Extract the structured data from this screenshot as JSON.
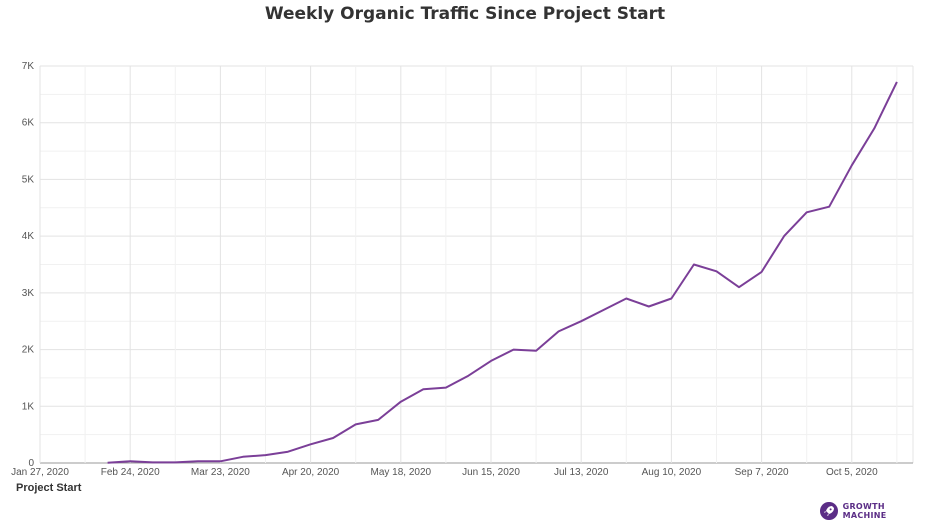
{
  "page": {
    "title": "Weekly Organic Traffic Since Project Start"
  },
  "brand": {
    "name": "GROWTH MACHINE",
    "icon": "rocket-icon",
    "color": "#5b2d86"
  },
  "chart_data": {
    "type": "line",
    "title": "Weekly Organic Traffic Since Project Start",
    "xlabel": "Project Start",
    "ylabel": "",
    "line_color": "#7b3f98",
    "grid": true,
    "legend": "none",
    "xlim": [
      "2020-01-27",
      "2020-10-24"
    ],
    "ylim": [
      0,
      7000
    ],
    "y_ticks": [
      0,
      1000,
      2000,
      3000,
      4000,
      5000,
      6000,
      7000
    ],
    "y_tick_labels": [
      "0",
      "1K",
      "2K",
      "3K",
      "4K",
      "5K",
      "6K",
      "7K"
    ],
    "x_ticks": [
      "2020-01-27",
      "2020-02-24",
      "2020-03-23",
      "2020-04-20",
      "2020-05-18",
      "2020-06-15",
      "2020-07-13",
      "2020-08-10",
      "2020-09-07",
      "2020-10-05"
    ],
    "x_tick_labels": [
      "Jan 27, 2020",
      "Feb 24, 2020",
      "Mar 23, 2020",
      "Apr 20, 2020",
      "May 18, 2020",
      "Jun 15, 2020",
      "Jul 13, 2020",
      "Aug 10, 2020",
      "Sep 7, 2020",
      "Oct 5, 2020"
    ],
    "x": [
      "2020-02-17",
      "2020-02-24",
      "2020-03-02",
      "2020-03-09",
      "2020-03-16",
      "2020-03-23",
      "2020-03-30",
      "2020-04-06",
      "2020-04-13",
      "2020-04-20",
      "2020-04-27",
      "2020-05-04",
      "2020-05-11",
      "2020-05-18",
      "2020-05-25",
      "2020-06-01",
      "2020-06-08",
      "2020-06-15",
      "2020-06-22",
      "2020-06-29",
      "2020-07-06",
      "2020-07-13",
      "2020-07-20",
      "2020-07-27",
      "2020-08-03",
      "2020-08-10",
      "2020-08-17",
      "2020-08-24",
      "2020-08-31",
      "2020-09-07",
      "2020-09-14",
      "2020-09-21",
      "2020-09-28",
      "2020-10-05",
      "2020-10-12",
      "2020-10-19"
    ],
    "values": [
      5,
      30,
      10,
      10,
      30,
      30,
      110,
      140,
      200,
      330,
      440,
      680,
      760,
      1080,
      1300,
      1330,
      1540,
      1800,
      2000,
      1980,
      2320,
      2500,
      2700,
      2900,
      2760,
      2900,
      3500,
      3380,
      3100,
      3370,
      4000,
      4420,
      4520,
      5250,
      5900,
      6720
    ]
  }
}
